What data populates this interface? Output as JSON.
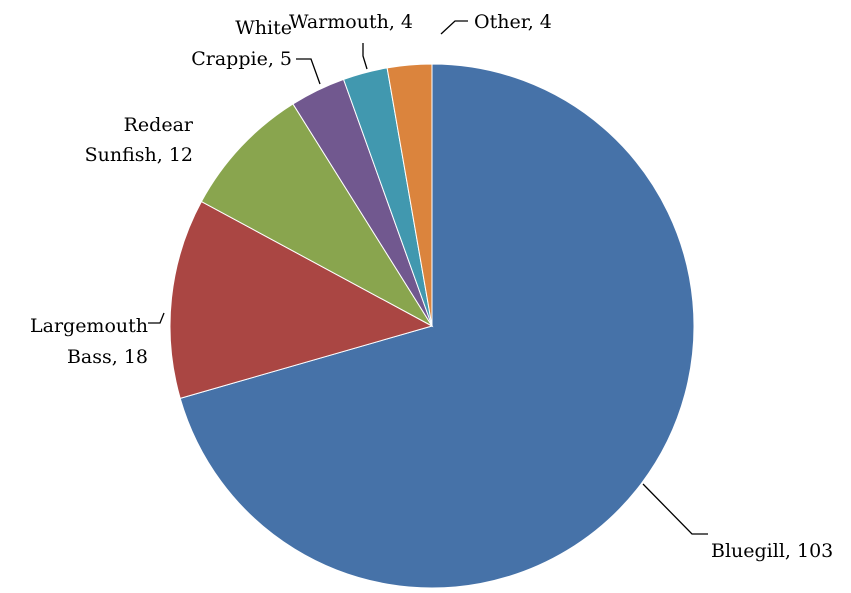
{
  "chart_data": {
    "type": "pie",
    "title": "",
    "start": "12 o'clock",
    "direction": "clockwise",
    "slices": [
      {
        "label": "Bluegill",
        "value": 103,
        "color": "#4672A8",
        "data_label": [
          "Bluegill, 103"
        ]
      },
      {
        "label": "Largemouth Bass",
        "value": 18,
        "color": "#AA4643",
        "data_label": [
          "Largemouth",
          "Bass, 18"
        ]
      },
      {
        "label": "Redear Sunfish",
        "value": 12,
        "color": "#89A54E",
        "data_label": [
          "Redear",
          "Sunfish, 12"
        ]
      },
      {
        "label": "White Crappie",
        "value": 5,
        "color": "#71588F",
        "data_label": [
          "White",
          "Crappie, 5"
        ]
      },
      {
        "label": "Warmouth",
        "value": 4,
        "color": "#4198AF",
        "data_label": [
          "Warmouth, 4"
        ]
      },
      {
        "label": "Other",
        "value": 4,
        "color": "#DB843D",
        "data_label": [
          "Other, 4"
        ]
      }
    ]
  }
}
